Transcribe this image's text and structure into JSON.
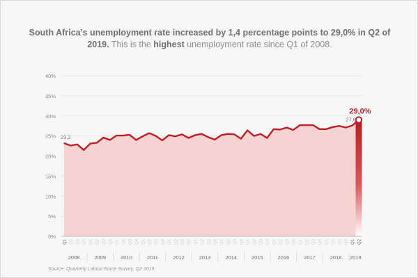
{
  "header": {
    "title_bold": "South Africa’s unemployment rate increased by 1,4 percentage points to 29,0% in Q2 of 2019.",
    "title_rest_1": " This is the ",
    "title_highlight": "highest",
    "title_rest_2": " unemployment rate since Q1 of 2008."
  },
  "footer": {
    "source": "Source: Quarterly Labour Force Survey, Q2 2019"
  },
  "chart_data": {
    "type": "area",
    "title": "South Africa’s unemployment rate increased by 1,4 percentage points to 29,0% in Q2 of 2019. This is the highest unemployment rate since Q1 of 2008.",
    "xlabel": "",
    "ylabel": "",
    "ylim": [
      0,
      40
    ],
    "yticks": [
      0,
      5,
      10,
      15,
      20,
      25,
      30,
      35,
      40
    ],
    "ytick_labels": [
      "0%",
      "5%",
      "10%",
      "15%",
      "20%",
      "25%",
      "30%",
      "35%",
      "40%"
    ],
    "grid": true,
    "years": [
      "2008",
      "2009",
      "2010",
      "2011",
      "2012",
      "2013",
      "2014",
      "2015",
      "2016",
      "2017",
      "2018",
      "2019"
    ],
    "quarter_labels": [
      "Q1",
      "Q2",
      "Q3",
      "Q4"
    ],
    "x": [
      "2008 Q1",
      "2008 Q2",
      "2008 Q3",
      "2008 Q4",
      "2009 Q1",
      "2009 Q2",
      "2009 Q3",
      "2009 Q4",
      "2010 Q1",
      "2010 Q2",
      "2010 Q3",
      "2010 Q4",
      "2011 Q1",
      "2011 Q2",
      "2011 Q3",
      "2011 Q4",
      "2012 Q1",
      "2012 Q2",
      "2012 Q3",
      "2012 Q4",
      "2013 Q1",
      "2013 Q2",
      "2013 Q3",
      "2013 Q4",
      "2014 Q1",
      "2014 Q2",
      "2014 Q3",
      "2014 Q4",
      "2015 Q1",
      "2015 Q2",
      "2015 Q3",
      "2015 Q4",
      "2016 Q1",
      "2016 Q2",
      "2016 Q3",
      "2016 Q4",
      "2017 Q1",
      "2017 Q2",
      "2017 Q3",
      "2017 Q4",
      "2018 Q1",
      "2018 Q2",
      "2018 Q3",
      "2018 Q4",
      "2019 Q1",
      "2019 Q2"
    ],
    "series": [
      {
        "values": [
          23.2,
          22.6,
          22.9,
          21.5,
          23.1,
          23.3,
          24.6,
          24.0,
          25.1,
          25.1,
          25.3,
          24.0,
          24.9,
          25.7,
          25.0,
          23.9,
          25.2,
          24.9,
          25.4,
          24.5,
          25.2,
          25.5,
          24.7,
          24.1,
          25.2,
          25.5,
          25.4,
          24.3,
          26.4,
          25.0,
          25.5,
          24.5,
          26.7,
          26.6,
          27.1,
          26.5,
          27.7,
          27.7,
          27.7,
          26.7,
          26.7,
          27.2,
          27.5,
          27.1,
          27.6,
          29.0
        ]
      }
    ],
    "data_labels": [
      {
        "x": "2008 Q1",
        "text": "23,2"
      },
      {
        "x": "2019 Q1",
        "text": "27,6"
      },
      {
        "x": "2019 Q2",
        "text": "29,0%"
      }
    ],
    "colors": {
      "line": "#c01d22",
      "fill": "#f5d3d3",
      "highlight": "#b81e22"
    }
  }
}
